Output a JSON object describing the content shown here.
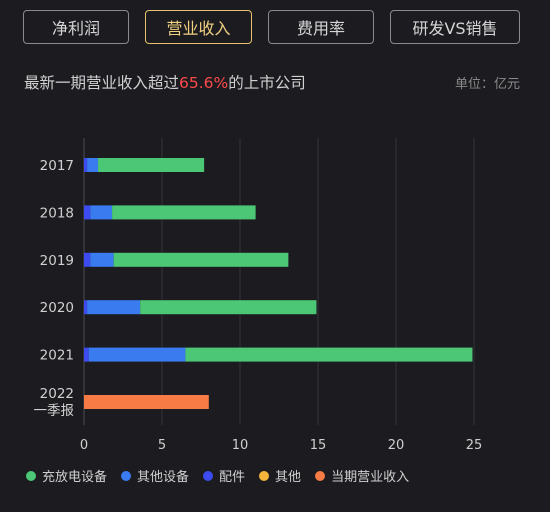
{
  "tabs": [
    {
      "label": "净利润",
      "active": false
    },
    {
      "label": "营业收入",
      "active": true
    },
    {
      "label": "费用率",
      "active": false
    },
    {
      "label": "研发VS销售",
      "active": false
    }
  ],
  "headline": {
    "prefix": "最新一期营业收入超过",
    "highlight": "65.6%",
    "suffix": "的上市公司"
  },
  "unit": "单位：亿元",
  "colors": {
    "charging": "#4cc776",
    "other_device": "#3a7bf0",
    "parts": "#3d4cf0",
    "other": "#f5b43a",
    "current": "#f77b45"
  },
  "chart_data": {
    "type": "bar",
    "orientation": "horizontal",
    "stacked": true,
    "categories": [
      "2017",
      "2018",
      "2019",
      "2020",
      "2021",
      "2022\n一季报"
    ],
    "series": [
      {
        "name": "充放电设备",
        "key": "charging",
        "values": [
          6.8,
          9.2,
          11.2,
          11.3,
          18.4,
          0
        ]
      },
      {
        "name": "其他设备",
        "key": "other_device",
        "values": [
          0.7,
          1.4,
          1.5,
          3.4,
          6.2,
          0
        ]
      },
      {
        "name": "配件",
        "key": "parts",
        "values": [
          0.2,
          0.4,
          0.4,
          0.2,
          0.3,
          0
        ]
      },
      {
        "name": "其他",
        "key": "other",
        "values": [
          0,
          0,
          0,
          0,
          0,
          0
        ]
      },
      {
        "name": "当期营业收入",
        "key": "current",
        "values": [
          0,
          0,
          0,
          0,
          0,
          8.0
        ]
      }
    ],
    "x_ticks": [
      0,
      5,
      10,
      15,
      20,
      25
    ],
    "xlim": [
      0,
      27
    ],
    "grid": true,
    "legend_position": "bottom"
  }
}
